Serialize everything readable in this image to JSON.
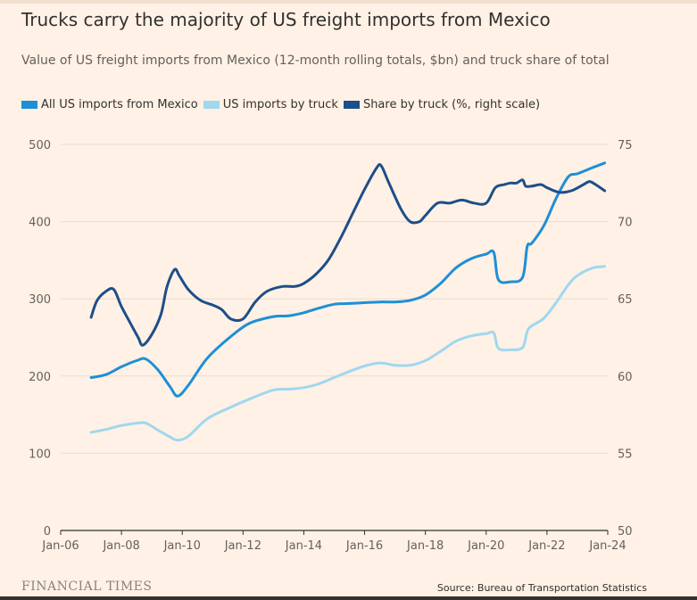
{
  "header": {
    "title": "Trucks carry the majority of US freight imports from Mexico",
    "subtitle": "Value of US freight imports from Mexico (12-month rolling totals, $bn) and truck share of total"
  },
  "footer": {
    "brand": "FINANCIAL TIMES",
    "source": "Source: Bureau of Transportation Statistics"
  },
  "colors": {
    "background": "#fff1e5",
    "all_imports": "#1e8fd6",
    "truck_imports": "#9fd8ef",
    "truck_share": "#1d4e8a",
    "axis": "#33302e",
    "grid": "#e9dccf"
  },
  "chart_data": {
    "type": "line",
    "x_ticks": [
      "Jan-06",
      "Jan-08",
      "Jan-10",
      "Jan-12",
      "Jan-14",
      "Jan-16",
      "Jan-18",
      "Jan-20",
      "Jan-22",
      "Jan-24"
    ],
    "xlim": [
      2006.0,
      2024.0
    ],
    "ylim_left": [
      0,
      500
    ],
    "yticks_left": [
      "0",
      "100",
      "200",
      "300",
      "400",
      "500"
    ],
    "ylim_right": [
      50,
      75
    ],
    "yticks_right": [
      "50",
      "55",
      "60",
      "65",
      "70",
      "75"
    ],
    "grid": "horizontal",
    "legend_position": "top-left",
    "series": [
      {
        "name": "All US imports from Mexico",
        "axis": "left",
        "x": [
          2007.0,
          2007.5,
          2008.0,
          2008.5,
          2008.8,
          2009.2,
          2009.6,
          2009.85,
          2010.2,
          2010.8,
          2011.5,
          2012.2,
          2013.0,
          2013.5,
          2014.0,
          2014.5,
          2015.0,
          2015.5,
          2016.0,
          2016.5,
          2017.0,
          2017.5,
          2018.0,
          2018.5,
          2019.0,
          2019.5,
          2020.0,
          2020.25,
          2020.4,
          2020.8,
          2021.2,
          2021.35,
          2021.5,
          2021.9,
          2022.3,
          2022.7,
          2023.0,
          2023.5,
          2023.9
        ],
        "values": [
          198,
          202,
          212,
          220,
          222,
          208,
          186,
          174,
          188,
          222,
          248,
          268,
          277,
          278,
          282,
          288,
          293,
          294,
          295,
          296,
          296,
          298,
          305,
          320,
          340,
          352,
          358,
          360,
          325,
          322,
          328,
          368,
          372,
          395,
          430,
          458,
          462,
          470,
          476
        ]
      },
      {
        "name": "US imports by truck",
        "axis": "left",
        "x": [
          2007.0,
          2007.5,
          2008.0,
          2008.5,
          2008.8,
          2009.2,
          2009.6,
          2009.85,
          2010.2,
          2010.8,
          2011.5,
          2012.2,
          2013.0,
          2013.5,
          2014.0,
          2014.5,
          2015.0,
          2015.5,
          2016.0,
          2016.5,
          2017.0,
          2017.5,
          2018.0,
          2018.5,
          2019.0,
          2019.5,
          2020.0,
          2020.25,
          2020.4,
          2020.8,
          2021.2,
          2021.35,
          2021.5,
          2021.9,
          2022.3,
          2022.7,
          2023.0,
          2023.5,
          2023.9
        ],
        "values": [
          127,
          131,
          136,
          139,
          139,
          130,
          121,
          117,
          122,
          144,
          158,
          170,
          182,
          183,
          185,
          190,
          198,
          206,
          213,
          217,
          214,
          214,
          220,
          232,
          245,
          252,
          255,
          256,
          236,
          234,
          237,
          258,
          265,
          275,
          295,
          318,
          330,
          340,
          342
        ]
      },
      {
        "name": "Share by truck (%, right scale)",
        "axis": "right",
        "x": [
          2007.0,
          2007.2,
          2007.5,
          2007.75,
          2008.0,
          2008.3,
          2008.55,
          2008.7,
          2009.0,
          2009.3,
          2009.5,
          2009.75,
          2009.9,
          2010.2,
          2010.6,
          2011.0,
          2011.3,
          2011.6,
          2012.0,
          2012.4,
          2012.8,
          2013.3,
          2013.7,
          2014.0,
          2014.4,
          2014.8,
          2015.2,
          2015.6,
          2016.0,
          2016.4,
          2016.55,
          2016.8,
          2017.2,
          2017.5,
          2017.8,
          2018.0,
          2018.4,
          2018.8,
          2019.2,
          2019.6,
          2020.0,
          2020.3,
          2020.6,
          2020.8,
          2021.0,
          2021.2,
          2021.3,
          2021.5,
          2021.8,
          2022.0,
          2022.4,
          2022.8,
          2023.2,
          2023.4,
          2023.6,
          2023.9
        ],
        "values": [
          63.8,
          64.9,
          65.5,
          65.6,
          64.5,
          63.4,
          62.5,
          62.0,
          62.7,
          64.0,
          65.8,
          66.9,
          66.5,
          65.6,
          64.9,
          64.6,
          64.3,
          63.7,
          63.7,
          64.8,
          65.5,
          65.8,
          65.8,
          66.0,
          66.6,
          67.5,
          68.9,
          70.5,
          72.1,
          73.5,
          73.6,
          72.5,
          70.8,
          70.0,
          70.0,
          70.4,
          71.2,
          71.2,
          71.4,
          71.2,
          71.2,
          72.2,
          72.4,
          72.5,
          72.5,
          72.7,
          72.3,
          72.3,
          72.4,
          72.2,
          71.9,
          72.0,
          72.4,
          72.6,
          72.4,
          72.0
        ]
      }
    ]
  }
}
